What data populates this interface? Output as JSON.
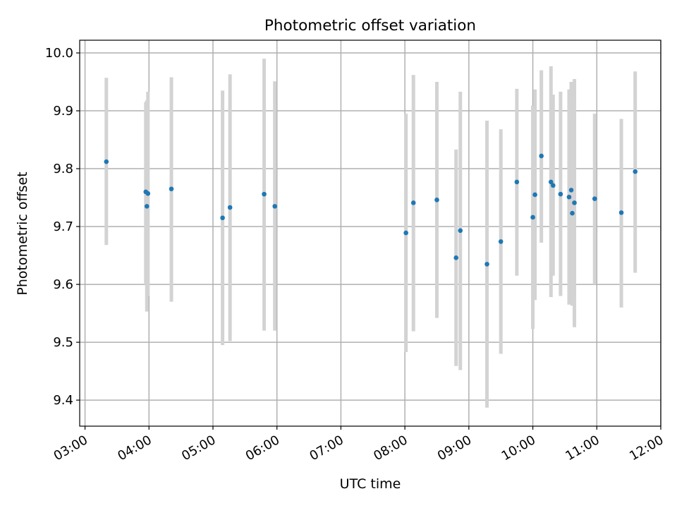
{
  "chart_data": {
    "type": "scatter",
    "title": "Photometric offset variation",
    "xlabel": "UTC time",
    "ylabel": "Photometric offset",
    "x_axis_kind": "time",
    "xlim": [
      "02:55",
      "12:00"
    ],
    "ylim": [
      9.355,
      10.022
    ],
    "x_ticks": [
      "03:00",
      "04:00",
      "05:00",
      "06:00",
      "07:00",
      "08:00",
      "09:00",
      "10:00",
      "11:00",
      "12:00"
    ],
    "y_ticks": [
      "9.4",
      "9.5",
      "9.6",
      "9.7",
      "9.8",
      "9.9",
      "10.0"
    ],
    "grid": true,
    "colors": {
      "points": "#1f77b4",
      "errorbars": "#d3d3d3",
      "grid": "#b0b0b0"
    },
    "series": [
      {
        "points": [
          {
            "x": "03:20",
            "y": 9.812,
            "err_low": 9.668,
            "err_high": 9.957
          },
          {
            "x": "03:57",
            "y": 9.76,
            "err_low": 9.6,
            "err_high": 9.915
          },
          {
            "x": "03:58",
            "y": 9.735,
            "err_low": 9.553,
            "err_high": 9.918
          },
          {
            "x": "03:59",
            "y": 9.757,
            "err_low": 9.58,
            "err_high": 9.933
          },
          {
            "x": "04:21",
            "y": 9.765,
            "err_low": 9.57,
            "err_high": 9.958
          },
          {
            "x": "05:09",
            "y": 9.715,
            "err_low": 9.495,
            "err_high": 9.935
          },
          {
            "x": "05:16",
            "y": 9.733,
            "err_low": 9.502,
            "err_high": 9.963
          },
          {
            "x": "05:48",
            "y": 9.756,
            "err_low": 9.52,
            "err_high": 9.99
          },
          {
            "x": "05:58",
            "y": 9.735,
            "err_low": 9.52,
            "err_high": 9.951
          },
          {
            "x": "08:01",
            "y": 9.689,
            "err_low": 9.483,
            "err_high": 9.895
          },
          {
            "x": "08:08",
            "y": 9.741,
            "err_low": 9.519,
            "err_high": 9.962
          },
          {
            "x": "08:30",
            "y": 9.746,
            "err_low": 9.542,
            "err_high": 9.95
          },
          {
            "x": "08:48",
            "y": 9.646,
            "err_low": 9.459,
            "err_high": 9.833
          },
          {
            "x": "08:52",
            "y": 9.693,
            "err_low": 9.452,
            "err_high": 9.933
          },
          {
            "x": "09:17",
            "y": 9.635,
            "err_low": 9.387,
            "err_high": 9.883
          },
          {
            "x": "09:30",
            "y": 9.674,
            "err_low": 9.48,
            "err_high": 9.868
          },
          {
            "x": "09:45",
            "y": 9.777,
            "err_low": 9.615,
            "err_high": 9.938
          },
          {
            "x": "10:00",
            "y": 9.716,
            "err_low": 9.523,
            "err_high": 9.909
          },
          {
            "x": "10:02",
            "y": 9.755,
            "err_low": 9.573,
            "err_high": 9.937
          },
          {
            "x": "10:08",
            "y": 9.822,
            "err_low": 9.672,
            "err_high": 9.97
          },
          {
            "x": "10:17",
            "y": 9.777,
            "err_low": 9.578,
            "err_high": 9.977
          },
          {
            "x": "10:19",
            "y": 9.771,
            "err_low": 9.615,
            "err_high": 9.928
          },
          {
            "x": "10:26",
            "y": 9.756,
            "err_low": 9.58,
            "err_high": 9.933
          },
          {
            "x": "10:34",
            "y": 9.751,
            "err_low": 9.565,
            "err_high": 9.937
          },
          {
            "x": "10:36",
            "y": 9.763,
            "err_low": 9.577,
            "err_high": 9.95
          },
          {
            "x": "10:37",
            "y": 9.723,
            "err_low": 9.563,
            "err_high": 9.885
          },
          {
            "x": "10:39",
            "y": 9.741,
            "err_low": 9.526,
            "err_high": 9.955
          },
          {
            "x": "10:58",
            "y": 9.748,
            "err_low": 9.6,
            "err_high": 9.895
          },
          {
            "x": "11:23",
            "y": 9.724,
            "err_low": 9.56,
            "err_high": 9.886
          },
          {
            "x": "11:36",
            "y": 9.795,
            "err_low": 9.62,
            "err_high": 9.968
          }
        ]
      }
    ]
  }
}
